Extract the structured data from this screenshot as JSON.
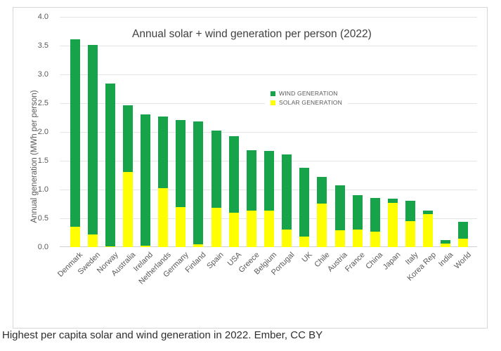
{
  "caption": {
    "text": "Highest per capita solar and wind generation in 2022.",
    "source": "Ember, CC BY"
  },
  "colors": {
    "wind_green": "#16a34a",
    "solar_yellow": "#ffff00",
    "gridline": "#e4e4e4",
    "axis_text": "#595959",
    "title_text": "#404040"
  },
  "chart_data": {
    "type": "bar",
    "stacked": true,
    "title": "Annual solar + wind generation per person (2022)",
    "ylabel": "Annual generation (MWh per person)",
    "xlabel": "",
    "ylim": [
      0,
      4.0
    ],
    "ytick_step": 0.5,
    "ytick_labels": [
      "0.0",
      "0.5",
      "1.0",
      "1.5",
      "2.0",
      "2.5",
      "3.0",
      "3.5",
      "4.0"
    ],
    "grid": true,
    "legend_position": "inside-upper-right",
    "categories": [
      "Denmark",
      "Sweden",
      "Norway",
      "Australia",
      "Ireland",
      "Netherlands",
      "Germany",
      "Finland",
      "Spain",
      "USA",
      "Greece",
      "Belgium",
      "Portugal",
      "UK",
      "Chile",
      "Austria",
      "France",
      "China",
      "Japan",
      "Italy",
      "Korea Rep",
      "India",
      "World"
    ],
    "series": [
      {
        "name": "WIND GENERATION",
        "key": "wind",
        "color": "#16a34a",
        "values": [
          3.26,
          3.29,
          2.83,
          1.15,
          2.28,
          1.24,
          1.51,
          2.13,
          1.34,
          1.33,
          1.05,
          1.04,
          1.31,
          1.2,
          0.46,
          0.78,
          0.6,
          0.59,
          0.07,
          0.35,
          0.07,
          0.06,
          0.29
        ]
      },
      {
        "name": "SOLAR GENERATION",
        "key": "solar",
        "color": "#ffff00",
        "values": [
          0.35,
          0.22,
          0.01,
          1.31,
          0.03,
          1.03,
          0.7,
          0.05,
          0.68,
          0.6,
          0.63,
          0.63,
          0.3,
          0.18,
          0.76,
          0.29,
          0.3,
          0.27,
          0.77,
          0.45,
          0.57,
          0.06,
          0.15
        ]
      }
    ],
    "totals": [
      3.61,
      3.51,
      2.84,
      2.46,
      2.31,
      2.27,
      2.21,
      2.18,
      2.02,
      1.93,
      1.68,
      1.67,
      1.61,
      1.38,
      1.22,
      1.07,
      0.9,
      0.86,
      0.84,
      0.8,
      0.64,
      0.12,
      0.44
    ]
  }
}
